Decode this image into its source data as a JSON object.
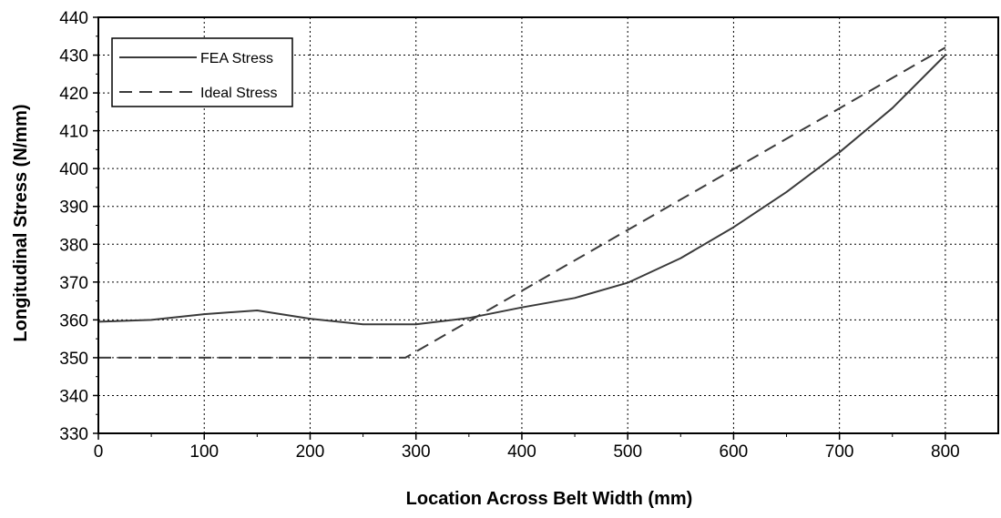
{
  "chart_data": {
    "type": "line",
    "title": "",
    "xlabel": "Location Across Belt Width (mm)",
    "ylabel": "Longitudinal Stress (N/mm)",
    "xlim": [
      0,
      850
    ],
    "ylim": [
      330,
      440
    ],
    "xticks": [
      "0",
      "100",
      "200",
      "300",
      "400",
      "500",
      "600",
      "700",
      "800"
    ],
    "yticks": [
      "330",
      "340",
      "350",
      "360",
      "370",
      "380",
      "390",
      "400",
      "410",
      "420",
      "430",
      "440"
    ],
    "grid": true,
    "legend_position": "top-left",
    "series": [
      {
        "name": "FEA Stress",
        "style": "solid",
        "color": "#3a3a3a",
        "x": [
          0,
          50,
          100,
          150,
          200,
          250,
          300,
          350,
          400,
          450,
          500,
          550,
          600,
          650,
          700,
          750,
          800
        ],
        "y": [
          359.5,
          360,
          361.5,
          362.5,
          360.3,
          358.8,
          358.8,
          360.5,
          363.3,
          365.8,
          369.8,
          376.3,
          384.5,
          393.8,
          404.3,
          416,
          430
        ]
      },
      {
        "name": "Ideal Stress",
        "style": "dashed",
        "color": "#3a3a3a",
        "x": [
          0,
          290,
          800
        ],
        "y": [
          350,
          350,
          432
        ]
      }
    ]
  }
}
